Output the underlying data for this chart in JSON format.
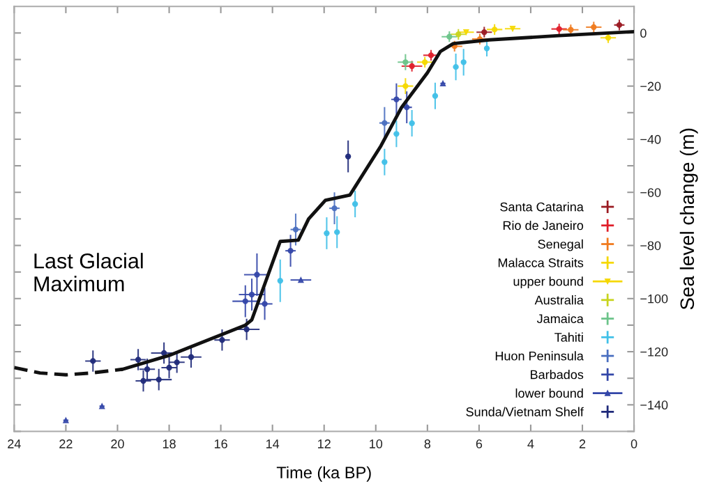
{
  "chart_data": {
    "type": "scatter",
    "xlabel": "Time (ka BP)",
    "ylabel": "Sea level change (m)",
    "xlim": [
      24,
      0
    ],
    "xticks": [
      24,
      22,
      20,
      18,
      16,
      14,
      12,
      10,
      8,
      6,
      4,
      2,
      0
    ],
    "ylim": [
      -150,
      10
    ],
    "yticks": [
      {
        "value": -150,
        "label": null
      },
      {
        "value": -140,
        "label": "−140"
      },
      {
        "value": -130,
        "label": null
      },
      {
        "value": -120,
        "label": "−120"
      },
      {
        "value": -110,
        "label": null
      },
      {
        "value": -100,
        "label": "−100"
      },
      {
        "value": -90,
        "label": null
      },
      {
        "value": -80,
        "label": "−80"
      },
      {
        "value": -70,
        "label": null
      },
      {
        "value": -60,
        "label": "−60"
      },
      {
        "value": -50,
        "label": null
      },
      {
        "value": -40,
        "label": "−40"
      },
      {
        "value": -30,
        "label": null
      },
      {
        "value": -20,
        "label": "−20"
      },
      {
        "value": -10,
        "label": null
      },
      {
        "value": 0,
        "label": "0"
      }
    ],
    "grid": false,
    "legend": "lower right",
    "marker": "circle",
    "annotations": [
      "Last Glacial\nMaximum"
    ],
    "series": [
      {
        "type": "line",
        "color": "#111111",
        "line_style": "dashed",
        "marker": "none",
        "x": [
          24,
          23.0,
          22.0,
          21.0,
          19.8
        ],
        "values": [
          -126,
          -128,
          -128.7,
          -128,
          -126.6
        ]
      },
      {
        "type": "line",
        "color": "#111111",
        "line_style": "solid",
        "marker": "none",
        "x": [
          19.8,
          18.0,
          15.05,
          14.8,
          13.7,
          13.0,
          12.6,
          11.95,
          11.0,
          9.8,
          9.0,
          8.0,
          7.5,
          7.0,
          5.6,
          2.9,
          0
        ],
        "values": [
          -126.6,
          -121.4,
          -110,
          -108,
          -78.5,
          -78,
          -70,
          -63,
          -61,
          -42.5,
          -28,
          -15,
          -7,
          -4,
          -2.6,
          -1,
          0.5
        ]
      },
      {
        "name": "Santa Catarina",
        "color": "#9a1a22",
        "x": [
          0.57,
          5.8
        ],
        "values": [
          3,
          0.3
        ],
        "errors": [
          2,
          2
        ],
        "xerrors": [
          0.2,
          0.3
        ]
      },
      {
        "name": "Rio de Janeiro",
        "color": "#e01e2a",
        "x": [
          8.6,
          7.86,
          2.9
        ],
        "values": [
          -12.5,
          -8.4,
          1.5
        ],
        "errors": [
          2,
          2,
          2
        ],
        "xerrors": [
          0.4,
          0.3,
          0.3
        ]
      },
      {
        "name": "Senegal",
        "color": "#f07a1e",
        "x": [
          6.95,
          5.97,
          2.45,
          1.56
        ],
        "values": [
          -5,
          -2.3,
          1.2,
          2.2
        ],
        "errors": [
          2,
          2,
          2,
          2
        ],
        "xerrors": [
          0.3,
          0.3,
          0.3,
          0.3
        ]
      },
      {
        "name": "Malacca Straits",
        "color": "#f5d800",
        "x": [
          8.1,
          8.85,
          5.4,
          1.0
        ],
        "values": [
          -11,
          -20,
          1.3,
          -1.8
        ],
        "errors": [
          2,
          3,
          2,
          2
        ],
        "xerrors": [
          0.3,
          0.3,
          0.3,
          0.3
        ]
      },
      {
        "name": "upper bound",
        "color": "#f5d800",
        "marker": "triangle_down",
        "x": [
          6.5,
          4.7
        ],
        "values": [
          0.3,
          1.6
        ],
        "xerrors": [
          0.3,
          0.3
        ]
      },
      {
        "name": "Australia",
        "color": "#c8d41e",
        "x": [
          6.8
        ],
        "values": [
          -0.5
        ],
        "errors": [
          2
        ],
        "xerrors": [
          0.3
        ]
      },
      {
        "name": "Jamaica",
        "color": "#6cc48a",
        "x": [
          8.85,
          7.15
        ],
        "values": [
          -11,
          -1.4
        ],
        "errors": [
          3,
          2
        ],
        "xerrors": [
          0.3,
          0.3
        ]
      },
      {
        "name": "Tahiti",
        "color": "#41c0e8",
        "x": [
          13.7,
          11.9,
          11.5,
          10.8,
          9.66,
          9.2,
          8.6,
          7.7,
          6.9,
          6.6,
          5.7
        ],
        "values": [
          -93.3,
          -75.4,
          -75,
          -64.4,
          -48.6,
          -38,
          -34,
          -23.7,
          -12.8,
          -11,
          -5.8
        ],
        "errors": [
          8,
          6,
          6,
          5,
          5,
          5,
          5,
          5,
          5,
          5,
          3
        ],
        "xerrors": [
          0.1,
          0.1,
          0.1,
          0.1,
          0.1,
          0.1,
          0.1,
          0.1,
          0.1,
          0.1,
          0.1
        ]
      },
      {
        "name": "Huon Peninsula",
        "color": "#4a6fc0",
        "x": [
          13.1,
          11.6,
          9.66
        ],
        "values": [
          -74,
          -66,
          -33.9
        ],
        "errors": [
          6,
          6,
          6
        ],
        "xerrors": [
          0.2,
          0.2,
          0.2
        ]
      },
      {
        "name": "Barbados",
        "color": "#3346a8",
        "x": [
          14.6,
          14.8,
          14.3,
          15.05,
          13.3,
          9.2,
          8.8
        ],
        "values": [
          -91,
          -98.5,
          -102,
          -101,
          -82,
          -25,
          -28
        ],
        "errors": [
          8,
          6,
          6,
          6,
          6,
          6,
          6
        ],
        "xerrors": [
          0.5,
          0.5,
          0.3,
          0.5,
          0.2,
          0.2,
          0.2
        ]
      },
      {
        "name": "lower bound",
        "color": "#3346a8",
        "marker": "triangle",
        "x": [
          22.0,
          20.6,
          12.9,
          7.4
        ],
        "values": [
          -145.8,
          -140.5,
          -93,
          -19
        ],
        "xerrors": [
          0.1,
          0.1,
          0.4,
          0.1
        ]
      },
      {
        "name": "Sunda/Vietnam Shelf",
        "color": "#1f2a7a",
        "x": [
          20.95,
          19.2,
          18.85,
          19.0,
          18.4,
          18.2,
          18.0,
          17.7,
          17.15,
          15.95,
          15.0,
          11.07
        ],
        "values": [
          -123.5,
          -123,
          -126.6,
          -131,
          -130.5,
          -120.5,
          -126,
          -124,
          -122,
          -115.6,
          -111.6,
          -46.5
        ],
        "errors": [
          4,
          4,
          4,
          4,
          4,
          4,
          4,
          4,
          4,
          4,
          4,
          6
        ],
        "xerrors": [
          0.3,
          0.3,
          0.3,
          0.3,
          0.5,
          0.5,
          0.3,
          0.3,
          0.4,
          0.3,
          0.5,
          0.1
        ]
      }
    ]
  }
}
